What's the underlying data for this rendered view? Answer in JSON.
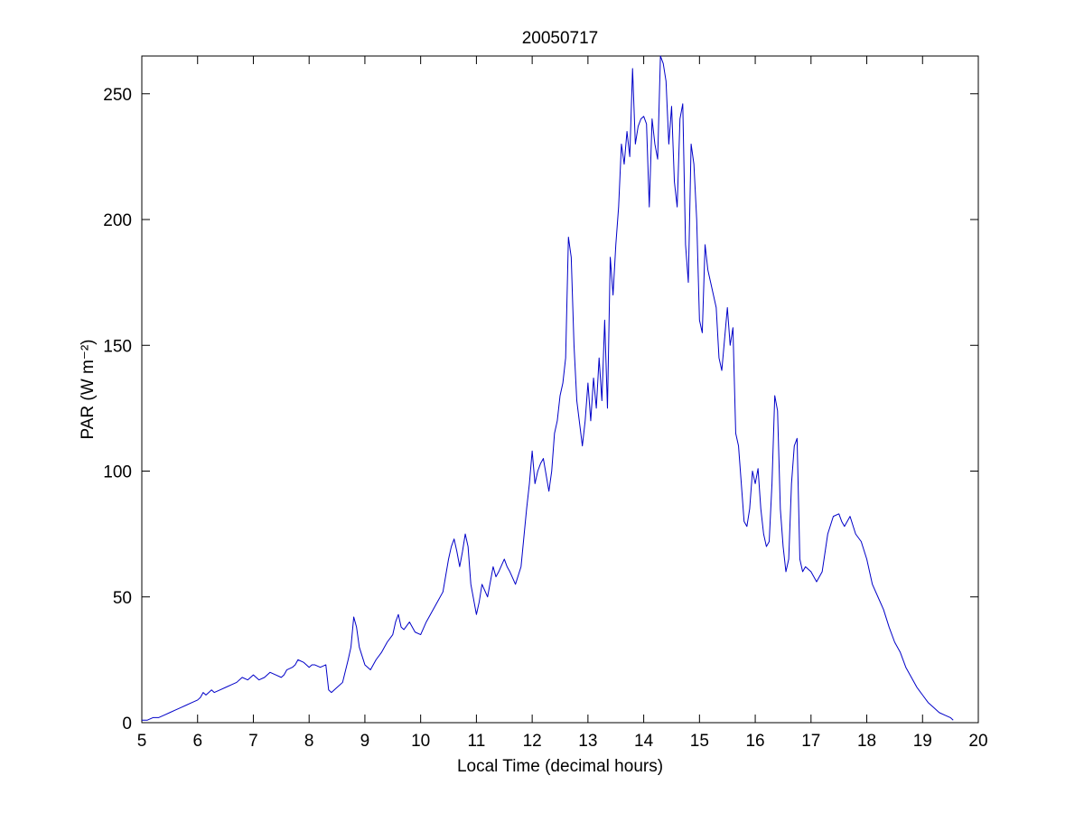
{
  "chart_data": {
    "type": "line",
    "title": "20050717",
    "xlabel": "Local Time (decimal hours)",
    "ylabel": "PAR (W m⁻²)",
    "xlim": [
      5,
      20
    ],
    "ylim": [
      0,
      265
    ],
    "xticks": [
      5,
      6,
      7,
      8,
      9,
      10,
      11,
      12,
      13,
      14,
      15,
      16,
      17,
      18,
      19,
      20
    ],
    "yticks": [
      0,
      50,
      100,
      150,
      200,
      250
    ],
    "grid": false,
    "legend": "none",
    "line_color": "#0000C8",
    "axis_color": "#000000",
    "background": "#ffffff",
    "series": [
      {
        "name": "PAR",
        "points": [
          [
            5.0,
            1
          ],
          [
            5.1,
            1
          ],
          [
            5.2,
            2
          ],
          [
            5.3,
            2
          ],
          [
            5.4,
            3
          ],
          [
            5.5,
            4
          ],
          [
            5.6,
            5
          ],
          [
            5.7,
            6
          ],
          [
            5.8,
            7
          ],
          [
            5.9,
            8
          ],
          [
            6.0,
            9
          ],
          [
            6.05,
            10
          ],
          [
            6.1,
            12
          ],
          [
            6.15,
            11
          ],
          [
            6.2,
            12
          ],
          [
            6.25,
            13
          ],
          [
            6.3,
            12
          ],
          [
            6.4,
            13
          ],
          [
            6.5,
            14
          ],
          [
            6.6,
            15
          ],
          [
            6.7,
            16
          ],
          [
            6.8,
            18
          ],
          [
            6.9,
            17
          ],
          [
            7.0,
            19
          ],
          [
            7.05,
            18
          ],
          [
            7.1,
            17
          ],
          [
            7.2,
            18
          ],
          [
            7.3,
            20
          ],
          [
            7.4,
            19
          ],
          [
            7.5,
            18
          ],
          [
            7.55,
            19
          ],
          [
            7.6,
            21
          ],
          [
            7.7,
            22
          ],
          [
            7.75,
            23
          ],
          [
            7.8,
            25
          ],
          [
            7.9,
            24
          ],
          [
            8.0,
            22
          ],
          [
            8.05,
            23
          ],
          [
            8.1,
            23
          ],
          [
            8.2,
            22
          ],
          [
            8.3,
            23
          ],
          [
            8.35,
            13
          ],
          [
            8.4,
            12
          ],
          [
            8.5,
            14
          ],
          [
            8.6,
            16
          ],
          [
            8.7,
            25
          ],
          [
            8.75,
            30
          ],
          [
            8.8,
            42
          ],
          [
            8.85,
            38
          ],
          [
            8.9,
            30
          ],
          [
            9.0,
            23
          ],
          [
            9.05,
            22
          ],
          [
            9.1,
            21
          ],
          [
            9.2,
            25
          ],
          [
            9.3,
            28
          ],
          [
            9.4,
            32
          ],
          [
            9.5,
            35
          ],
          [
            9.55,
            40
          ],
          [
            9.6,
            43
          ],
          [
            9.65,
            38
          ],
          [
            9.7,
            37
          ],
          [
            9.8,
            40
          ],
          [
            9.9,
            36
          ],
          [
            10.0,
            35
          ],
          [
            10.1,
            40
          ],
          [
            10.2,
            44
          ],
          [
            10.3,
            48
          ],
          [
            10.4,
            52
          ],
          [
            10.5,
            65
          ],
          [
            10.55,
            70
          ],
          [
            10.6,
            73
          ],
          [
            10.65,
            68
          ],
          [
            10.7,
            62
          ],
          [
            10.75,
            68
          ],
          [
            10.8,
            75
          ],
          [
            10.85,
            70
          ],
          [
            10.9,
            55
          ],
          [
            11.0,
            43
          ],
          [
            11.05,
            48
          ],
          [
            11.1,
            55
          ],
          [
            11.2,
            50
          ],
          [
            11.3,
            62
          ],
          [
            11.35,
            58
          ],
          [
            11.4,
            60
          ],
          [
            11.5,
            65
          ],
          [
            11.55,
            62
          ],
          [
            11.6,
            60
          ],
          [
            11.7,
            55
          ],
          [
            11.8,
            62
          ],
          [
            11.9,
            85
          ],
          [
            11.95,
            95
          ],
          [
            12.0,
            108
          ],
          [
            12.05,
            95
          ],
          [
            12.1,
            100
          ],
          [
            12.15,
            103
          ],
          [
            12.2,
            105
          ],
          [
            12.3,
            92
          ],
          [
            12.35,
            100
          ],
          [
            12.4,
            115
          ],
          [
            12.45,
            120
          ],
          [
            12.5,
            130
          ],
          [
            12.55,
            135
          ],
          [
            12.6,
            145
          ],
          [
            12.65,
            193
          ],
          [
            12.7,
            185
          ],
          [
            12.75,
            150
          ],
          [
            12.8,
            128
          ],
          [
            12.9,
            110
          ],
          [
            12.95,
            120
          ],
          [
            13.0,
            135
          ],
          [
            13.05,
            120
          ],
          [
            13.1,
            137
          ],
          [
            13.15,
            125
          ],
          [
            13.2,
            145
          ],
          [
            13.25,
            128
          ],
          [
            13.3,
            160
          ],
          [
            13.35,
            125
          ],
          [
            13.4,
            185
          ],
          [
            13.45,
            170
          ],
          [
            13.5,
            190
          ],
          [
            13.55,
            205
          ],
          [
            13.6,
            230
          ],
          [
            13.65,
            222
          ],
          [
            13.7,
            235
          ],
          [
            13.75,
            225
          ],
          [
            13.8,
            260
          ],
          [
            13.85,
            230
          ],
          [
            13.9,
            237
          ],
          [
            13.95,
            240
          ],
          [
            14.0,
            241
          ],
          [
            14.05,
            238
          ],
          [
            14.1,
            205
          ],
          [
            14.15,
            240
          ],
          [
            14.2,
            230
          ],
          [
            14.25,
            224
          ],
          [
            14.3,
            265
          ],
          [
            14.35,
            262
          ],
          [
            14.4,
            255
          ],
          [
            14.45,
            230
          ],
          [
            14.5,
            245
          ],
          [
            14.55,
            215
          ],
          [
            14.6,
            205
          ],
          [
            14.65,
            240
          ],
          [
            14.7,
            246
          ],
          [
            14.75,
            190
          ],
          [
            14.8,
            175
          ],
          [
            14.85,
            230
          ],
          [
            14.9,
            222
          ],
          [
            14.95,
            200
          ],
          [
            15.0,
            160
          ],
          [
            15.05,
            155
          ],
          [
            15.1,
            190
          ],
          [
            15.15,
            180
          ],
          [
            15.2,
            175
          ],
          [
            15.3,
            165
          ],
          [
            15.35,
            145
          ],
          [
            15.4,
            140
          ],
          [
            15.5,
            165
          ],
          [
            15.55,
            150
          ],
          [
            15.6,
            157
          ],
          [
            15.65,
            115
          ],
          [
            15.7,
            110
          ],
          [
            15.8,
            80
          ],
          [
            15.85,
            78
          ],
          [
            15.9,
            85
          ],
          [
            15.95,
            100
          ],
          [
            16.0,
            95
          ],
          [
            16.05,
            101
          ],
          [
            16.1,
            85
          ],
          [
            16.15,
            75
          ],
          [
            16.2,
            70
          ],
          [
            16.25,
            72
          ],
          [
            16.3,
            95
          ],
          [
            16.35,
            130
          ],
          [
            16.4,
            124
          ],
          [
            16.45,
            85
          ],
          [
            16.5,
            70
          ],
          [
            16.55,
            60
          ],
          [
            16.6,
            65
          ],
          [
            16.65,
            95
          ],
          [
            16.7,
            110
          ],
          [
            16.75,
            113
          ],
          [
            16.8,
            65
          ],
          [
            16.85,
            60
          ],
          [
            16.9,
            62
          ],
          [
            17.0,
            60
          ],
          [
            17.1,
            56
          ],
          [
            17.2,
            60
          ],
          [
            17.3,
            75
          ],
          [
            17.4,
            82
          ],
          [
            17.5,
            83
          ],
          [
            17.55,
            80
          ],
          [
            17.6,
            78
          ],
          [
            17.7,
            82
          ],
          [
            17.8,
            75
          ],
          [
            17.9,
            72
          ],
          [
            18.0,
            65
          ],
          [
            18.1,
            55
          ],
          [
            18.2,
            50
          ],
          [
            18.3,
            45
          ],
          [
            18.4,
            38
          ],
          [
            18.5,
            32
          ],
          [
            18.6,
            28
          ],
          [
            18.7,
            22
          ],
          [
            18.8,
            18
          ],
          [
            18.9,
            14
          ],
          [
            19.0,
            11
          ],
          [
            19.1,
            8
          ],
          [
            19.2,
            6
          ],
          [
            19.3,
            4
          ],
          [
            19.4,
            3
          ],
          [
            19.5,
            2
          ],
          [
            19.55,
            1
          ]
        ]
      }
    ]
  }
}
